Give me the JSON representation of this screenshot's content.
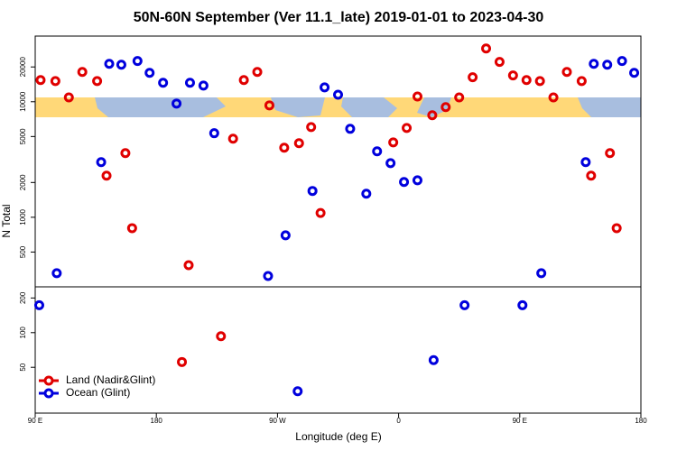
{
  "chart_data": [
    {
      "type": "scatter",
      "title": "50N-60N September (Ver 11.1_late)   2019-01-01 to 2023-04-30",
      "ylabel": "N Total",
      "log_y": true,
      "xlim": [
        90,
        540
      ],
      "ylim": [
        250,
        37000
      ],
      "yticks": [
        500,
        1000,
        2000,
        5000,
        10000,
        20000
      ],
      "series": [
        {
          "name": "Land (Nadir&Glint)",
          "color": "#e00000",
          "x": [
            94,
            105,
            115,
            125,
            136,
            143,
            157,
            162,
            204,
            237,
            245,
            255,
            264,
            275,
            286,
            295,
            302,
            356,
            366,
            374,
            385,
            395,
            405,
            415,
            425,
            435,
            445,
            455,
            465,
            475,
            485,
            496,
            503,
            517,
            522
          ],
          "values": [
            15400,
            15100,
            10900,
            18100,
            15100,
            2290,
            3590,
            805,
            385,
            4790,
            15400,
            18100,
            9300,
            4000,
            4380,
            6040,
            1090,
            4450,
            5930,
            11100,
            7640,
            8980,
            10900,
            16300,
            28900,
            22100,
            16900,
            15400,
            15100,
            10900,
            18100,
            15100,
            2290,
            3590,
            805
          ]
        },
        {
          "name": "Ocean (Glint)",
          "color": "#0000dd",
          "x": [
            106,
            139,
            145,
            154,
            166,
            175,
            185,
            195,
            205,
            215,
            223,
            263,
            276,
            296,
            305,
            315,
            324,
            336,
            344,
            354,
            364,
            374,
            466,
            499,
            505,
            515,
            526,
            535
          ],
          "values": [
            328,
            3000,
            21300,
            20900,
            22500,
            17800,
            14600,
            9640,
            14600,
            13800,
            5340,
            310,
            698,
            1690,
            13300,
            11500,
            5830,
            1600,
            3720,
            2940,
            2020,
            2090,
            328,
            3000,
            21300,
            20900,
            22500,
            17800
          ]
        }
      ]
    },
    {
      "type": "scatter",
      "xlabel": "Longitude (deg E)",
      "log_y": true,
      "legend": "lower left",
      "xlim": [
        90,
        540
      ],
      "xticks": [
        {
          "value": 90,
          "label": "90 E"
        },
        180,
        {
          "value": 270,
          "label": "90 W"
        },
        {
          "value": 360,
          "label": "0"
        },
        {
          "value": 450,
          "label": "90 E"
        },
        {
          "value": 540,
          "label": "180"
        }
      ],
      "ylim": [
        20,
        250
      ],
      "yticks": [
        50,
        100,
        200
      ],
      "series": [
        {
          "name": "Land (Nadir&Glint)",
          "color": "#e00000",
          "x": [
            199,
            228
          ],
          "values": [
            55.6,
            93.1
          ]
        },
        {
          "name": "Ocean (Glint)",
          "color": "#0000dd",
          "x": [
            93,
            285,
            386,
            409,
            452
          ],
          "values": [
            173,
            31,
            57.7,
            173,
            173
          ]
        }
      ]
    }
  ]
}
